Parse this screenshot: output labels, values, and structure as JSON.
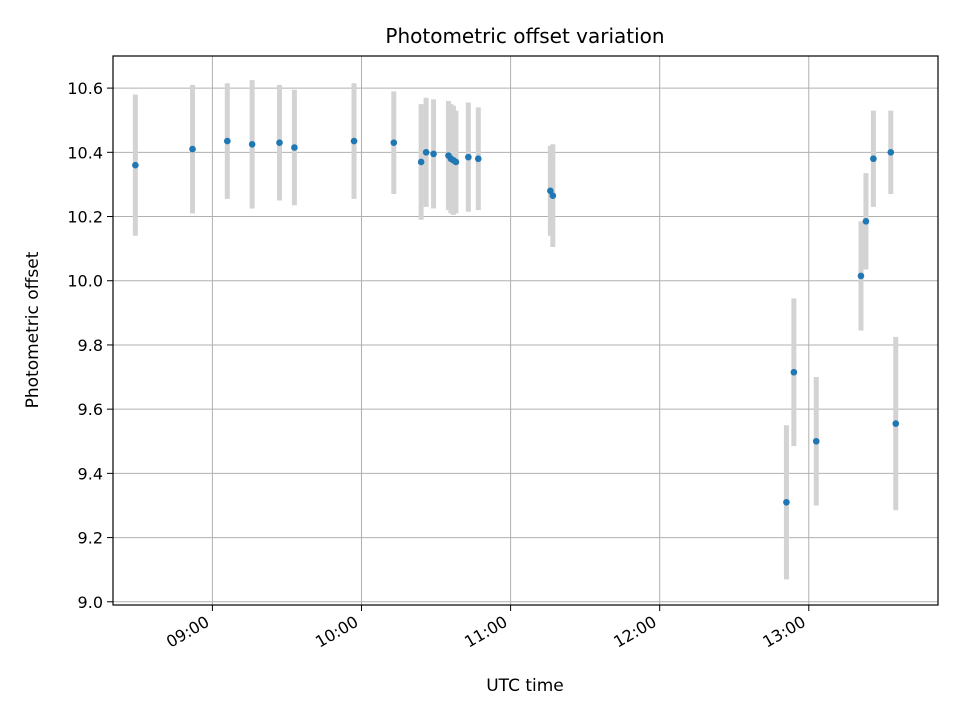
{
  "chart_data": {
    "type": "scatter",
    "title": "Photometric offset variation",
    "xlabel": "UTC time",
    "ylabel": "Photometric offset",
    "x_ticks": [
      "09:00",
      "10:00",
      "11:00",
      "12:00",
      "13:00"
    ],
    "x_tick_values": [
      "09:00",
      "10:00",
      "11:00",
      "12:00",
      "13:00"
    ],
    "xlim": [
      "08:20",
      "13:52"
    ],
    "y_ticks": [
      "9.0",
      "9.2",
      "9.4",
      "9.6",
      "9.8",
      "10.0",
      "10.2",
      "10.4",
      "10.6"
    ],
    "ylim": [
      8.99,
      10.7
    ],
    "grid": true,
    "marker_color": "#1f77b4",
    "errorbar_color": "#d3d3d3",
    "points": [
      {
        "x": "08:29",
        "y": 10.36,
        "err": 0.22
      },
      {
        "x": "08:52",
        "y": 10.41,
        "err": 0.2
      },
      {
        "x": "09:06",
        "y": 10.435,
        "err": 0.18
      },
      {
        "x": "09:16",
        "y": 10.425,
        "err": 0.2
      },
      {
        "x": "09:27",
        "y": 10.43,
        "err": 0.18
      },
      {
        "x": "09:33",
        "y": 10.415,
        "err": 0.18
      },
      {
        "x": "09:57",
        "y": 10.435,
        "err": 0.18
      },
      {
        "x": "10:13",
        "y": 10.43,
        "err": 0.16
      },
      {
        "x": "10:24",
        "y": 10.37,
        "err": 0.18
      },
      {
        "x": "10:26",
        "y": 10.4,
        "err": 0.17
      },
      {
        "x": "10:29",
        "y": 10.395,
        "err": 0.17
      },
      {
        "x": "10:35",
        "y": 10.39,
        "err": 0.17
      },
      {
        "x": "10:36",
        "y": 10.38,
        "err": 0.17
      },
      {
        "x": "10:37",
        "y": 10.375,
        "err": 0.17
      },
      {
        "x": "10:38",
        "y": 10.37,
        "err": 0.16
      },
      {
        "x": "10:43",
        "y": 10.385,
        "err": 0.17
      },
      {
        "x": "10:47",
        "y": 10.38,
        "err": 0.16
      },
      {
        "x": "11:16",
        "y": 10.28,
        "err": 0.14
      },
      {
        "x": "11:17",
        "y": 10.265,
        "err": 0.16
      },
      {
        "x": "12:51",
        "y": 9.31,
        "err": 0.24
      },
      {
        "x": "12:54",
        "y": 9.715,
        "err": 0.23
      },
      {
        "x": "13:03",
        "y": 9.5,
        "err": 0.2
      },
      {
        "x": "13:21",
        "y": 10.015,
        "err": 0.17
      },
      {
        "x": "13:23",
        "y": 10.185,
        "err": 0.15
      },
      {
        "x": "13:26",
        "y": 10.38,
        "err": 0.15
      },
      {
        "x": "13:33",
        "y": 10.4,
        "err": 0.13
      },
      {
        "x": "13:35",
        "y": 9.555,
        "err": 0.27
      }
    ]
  }
}
